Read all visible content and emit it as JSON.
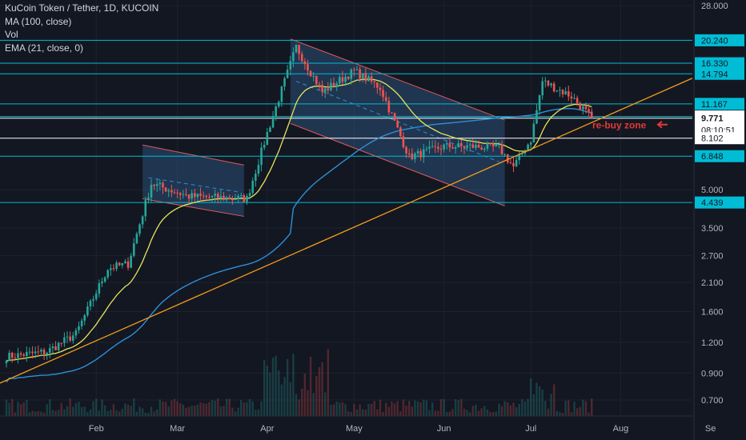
{
  "chart_data": {
    "type": "candlestick",
    "symbol_title": "KuCoin Token / Tether, 1D, KUCOIN",
    "indicators": [
      "MA (100, close)",
      "Vol",
      "EMA (21, close, 0)"
    ],
    "y_scale": "log",
    "ylim": [
      0.6,
      28.0
    ],
    "y_ticks": [
      "28.000",
      "5.000",
      "3.500",
      "2.700",
      "2.100",
      "1.600",
      "1.200",
      "0.900",
      "0.700"
    ],
    "x_ticks": [
      "Feb",
      "Mar",
      "Apr",
      "May",
      "Jun",
      "Jul",
      "Aug",
      "Se"
    ],
    "levels": [
      {
        "value": 20.24,
        "label": "20.240",
        "type": "resistance"
      },
      {
        "value": 16.33,
        "label": "16.330",
        "type": "resistance"
      },
      {
        "value": 14.794,
        "label": "14.794",
        "type": "resistance"
      },
      {
        "value": 11.167,
        "label": "11.167",
        "type": "resistance"
      },
      {
        "value": 9.924,
        "label": "9.924",
        "type": "level"
      },
      {
        "value": 9.771,
        "label": "9.771",
        "type": "current_price"
      },
      {
        "value": 8.102,
        "label": "8.102",
        "type": "level"
      },
      {
        "value": 6.848,
        "label": "6.848",
        "type": "support"
      },
      {
        "value": 4.439,
        "label": "4.439",
        "type": "support"
      }
    ],
    "countdown": "08:10:51",
    "annotation": "re-buy zone",
    "current_price": 9.771,
    "approx_close_path": [
      {
        "date": "Jan 1",
        "close": 1.05
      },
      {
        "date": "Jan 15",
        "close": 1.1
      },
      {
        "date": "Jan 25",
        "close": 1.3
      },
      {
        "date": "Feb 5",
        "close": 2.4
      },
      {
        "date": "Feb 12",
        "close": 2.5
      },
      {
        "date": "Feb 20",
        "close": 5.3
      },
      {
        "date": "Mar 5",
        "close": 4.7
      },
      {
        "date": "Mar 25",
        "close": 4.6
      },
      {
        "date": "Apr 1",
        "close": 8.5
      },
      {
        "date": "Apr 11",
        "close": 19.0
      },
      {
        "date": "Apr 20",
        "close": 12.5
      },
      {
        "date": "May 1",
        "close": 15.2
      },
      {
        "date": "May 10",
        "close": 13.0
      },
      {
        "date": "May 20",
        "close": 6.8
      },
      {
        "date": "Jun 1",
        "close": 7.5
      },
      {
        "date": "Jun 10",
        "close": 7.5
      },
      {
        "date": "Jun 20",
        "close": 7.4
      },
      {
        "date": "Jun 25",
        "close": 6.2
      },
      {
        "date": "Jul 1",
        "close": 8.0
      },
      {
        "date": "Jul 5",
        "close": 13.8
      },
      {
        "date": "Jul 15",
        "close": 12.0
      },
      {
        "date": "Jul 22",
        "close": 9.771
      }
    ],
    "colors": {
      "background": "#131722",
      "grid": "#1e222d",
      "axis_text": "#b2b5be",
      "up": "#26a69a",
      "down": "#ef5350",
      "level_line": "#00bcd4",
      "ema": "#e6e65a",
      "ma": "#2f8fd8",
      "trendline": "#f59c1a",
      "channel_fill": "#3a6ea5",
      "channel_edge": "#e05a5a",
      "annotation": "#e53935",
      "price_label_bg": "#ffffff"
    }
  }
}
